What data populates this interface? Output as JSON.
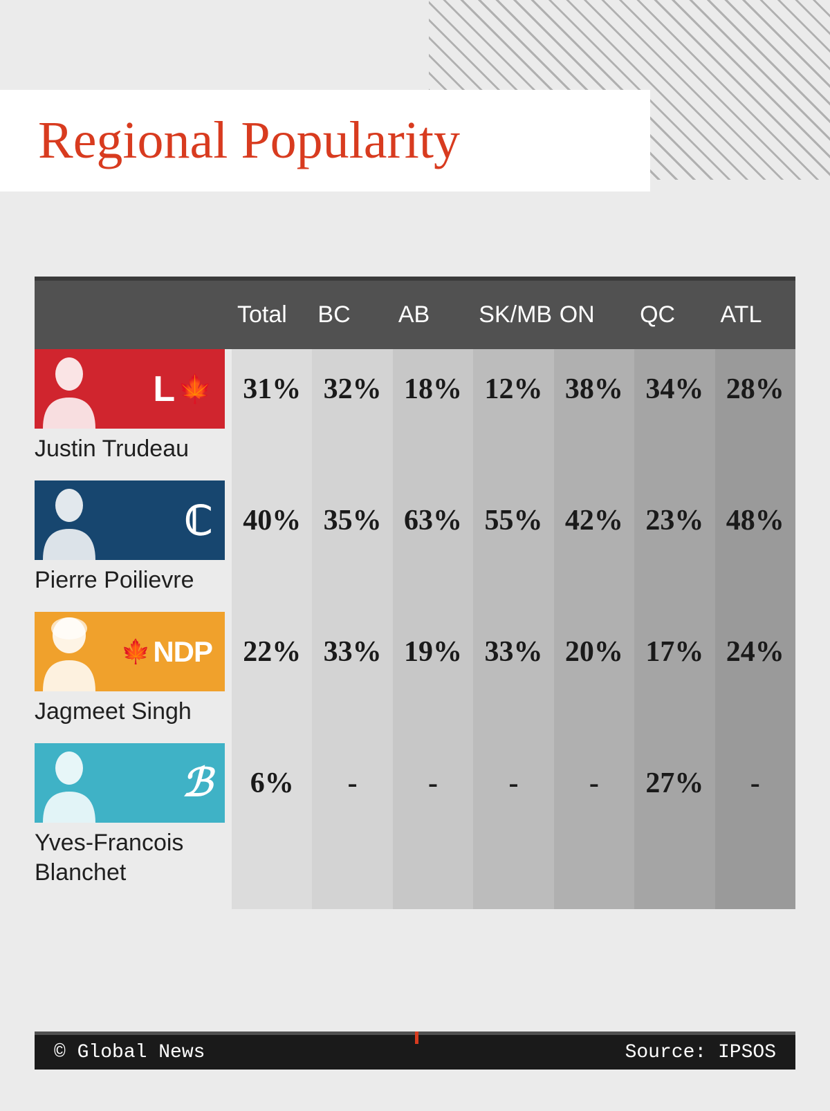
{
  "title": "Regional Popularity",
  "title_color": "#d83b1f",
  "background_color": "#ebebeb",
  "header": {
    "bg": "#515151",
    "border_top": "#3a3a3a",
    "text_color": "#ffffff",
    "columns": [
      "Total",
      "BC",
      "AB",
      "SK/MB",
      "ON",
      "QC",
      "ATL"
    ]
  },
  "column_shades": [
    "#dcdcdc",
    "#d3d3d3",
    "#c7c7c7",
    "#bcbcbc",
    "#b0b0b0",
    "#a5a5a5",
    "#9a9a9a"
  ],
  "leaders": [
    {
      "name": "Justin Trudeau",
      "party_label": "L",
      "badge_bg": "#d0252e",
      "values": [
        "31%",
        "32%",
        "18%",
        "12%",
        "38%",
        "34%",
        "28%"
      ]
    },
    {
      "name": "Pierre Poilievre",
      "party_label": "C",
      "badge_bg": "#17466f",
      "values": [
        "40%",
        "35%",
        "63%",
        "55%",
        "42%",
        "23%",
        "48%"
      ]
    },
    {
      "name": "Jagmeet Singh",
      "party_label": "NDP",
      "badge_bg": "#f0a12c",
      "values": [
        "22%",
        "33%",
        "19%",
        "33%",
        "20%",
        "17%",
        "24%"
      ]
    },
    {
      "name": "Yves-Francois Blanchet",
      "party_label": "B",
      "badge_bg": "#3fb2c6",
      "values": [
        "6%",
        "-",
        "-",
        "-",
        "-",
        "27%",
        "-"
      ]
    }
  ],
  "footer": {
    "left": "© Global News",
    "right": "Source: IPSOS",
    "bg": "#1a1a1a",
    "tick_color": "#d83b1f"
  }
}
